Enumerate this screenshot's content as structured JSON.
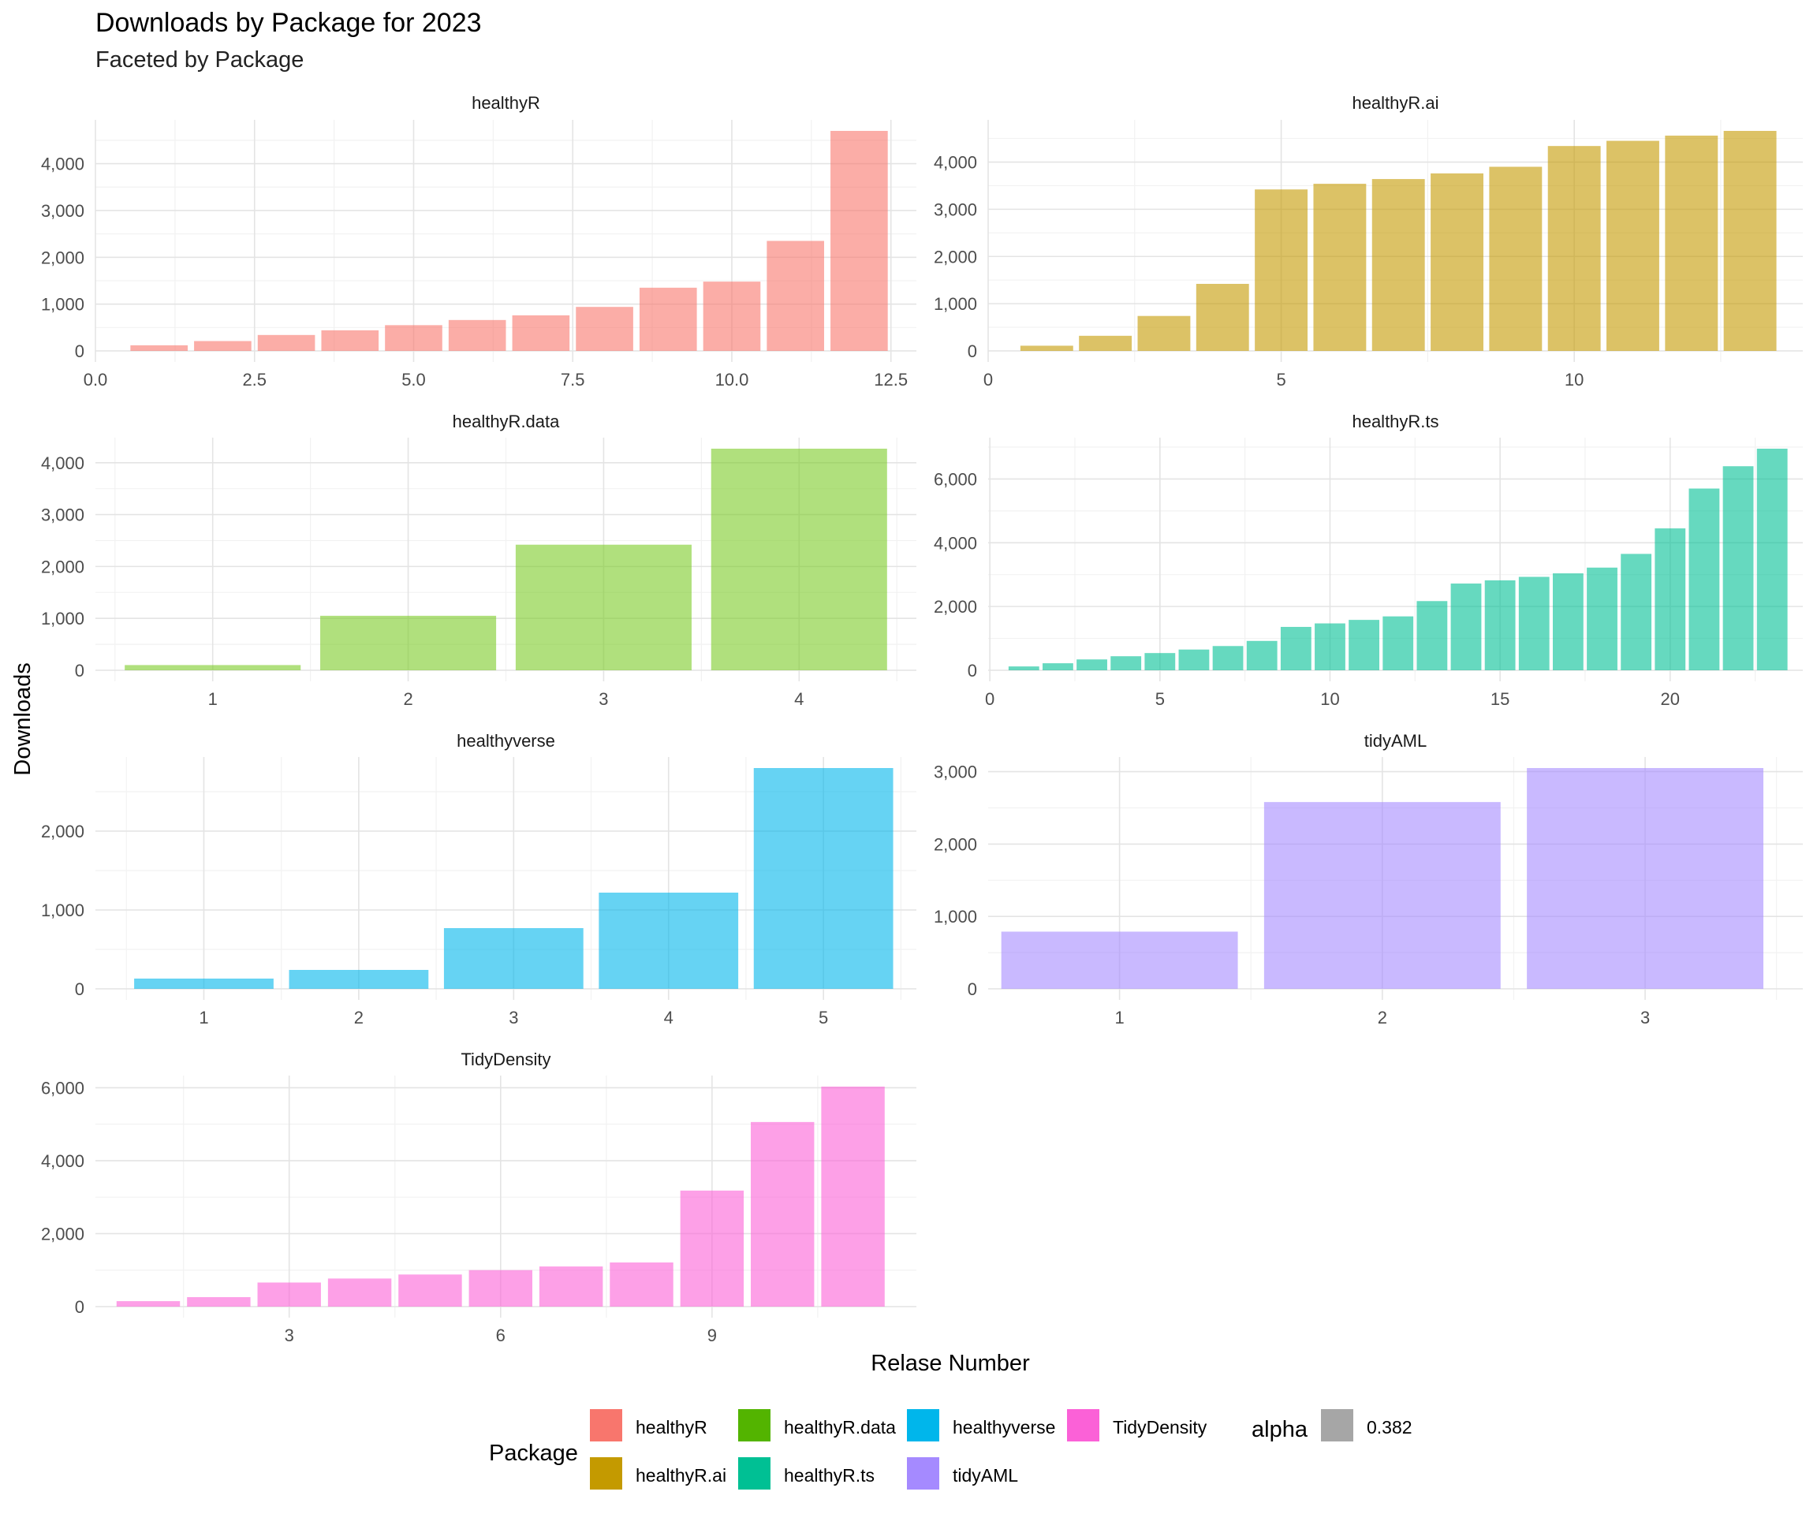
{
  "title": "Downloads by Package for 2023",
  "subtitle": "Faceted by Package",
  "xlabel": "Relase Number",
  "ylabel": "Downloads",
  "legend": {
    "title": "Package",
    "items": [
      {
        "name": "healthyR",
        "color": "#F8766D"
      },
      {
        "name": "healthyR.ai",
        "color": "#C49A00"
      },
      {
        "name": "healthyR.data",
        "color": "#53B400"
      },
      {
        "name": "healthyR.ts",
        "color": "#00C094"
      },
      {
        "name": "healthyverse",
        "color": "#00B6EB"
      },
      {
        "name": "tidyAML",
        "color": "#A58AFF"
      },
      {
        "name": "TidyDensity",
        "color": "#FB61D7"
      }
    ],
    "alpha_title": "alpha",
    "alpha_value": "0.382",
    "alpha_color": "#A6A6A6"
  },
  "chart_data": [
    {
      "type": "bar",
      "title": "healthyR",
      "color": "#F8766D",
      "x": [
        1,
        2,
        3,
        4,
        5,
        6,
        7,
        8,
        9,
        10,
        11,
        12
      ],
      "values": [
        120,
        210,
        340,
        440,
        550,
        660,
        760,
        940,
        1350,
        1480,
        2350,
        4700
      ],
      "xlim": [
        0,
        12.9
      ],
      "ylim": [
        0,
        4700
      ],
      "xticks": [
        0,
        2.5,
        5,
        7.5,
        10,
        12.5
      ],
      "xtick_labels": [
        "0.0",
        "2.5",
        "5.0",
        "7.5",
        "10.0",
        "12.5"
      ],
      "yticks": [
        0,
        1000,
        2000,
        3000,
        4000
      ],
      "ytick_labels": [
        "0",
        "1,000",
        "2,000",
        "3,000",
        "4,000"
      ]
    },
    {
      "type": "bar",
      "title": "healthyR.ai",
      "color": "#C49A00",
      "x": [
        1,
        2,
        3,
        4,
        5,
        6,
        7,
        8,
        9,
        10,
        11,
        12,
        13
      ],
      "values": [
        110,
        320,
        740,
        1420,
        3420,
        3540,
        3640,
        3760,
        3900,
        4340,
        4450,
        4560,
        4660
      ],
      "xlim": [
        0,
        13.9
      ],
      "ylim": [
        0,
        4660
      ],
      "xticks": [
        0,
        5,
        10
      ],
      "xtick_labels": [
        "0",
        "5",
        "10"
      ],
      "yticks": [
        0,
        1000,
        2000,
        3000,
        4000
      ],
      "ytick_labels": [
        "0",
        "1,000",
        "2,000",
        "3,000",
        "4,000"
      ]
    },
    {
      "type": "bar",
      "title": "healthyR.data",
      "color": "#7CCB27",
      "x": [
        1,
        2,
        3,
        4
      ],
      "values": [
        100,
        1050,
        2420,
        4270
      ],
      "xlim": [
        0.4,
        4.6
      ],
      "ylim": [
        0,
        4270
      ],
      "xticks": [
        1,
        2,
        3,
        4
      ],
      "xtick_labels": [
        "1",
        "2",
        "3",
        "4"
      ],
      "yticks": [
        0,
        1000,
        2000,
        3000,
        4000
      ],
      "ytick_labels": [
        "0",
        "1,000",
        "2,000",
        "3,000",
        "4,000"
      ]
    },
    {
      "type": "bar",
      "title": "healthyR.ts",
      "color": "#00C094",
      "x": [
        1,
        2,
        3,
        4,
        5,
        6,
        7,
        8,
        9,
        10,
        11,
        12,
        13,
        14,
        15,
        16,
        17,
        18,
        19,
        20,
        21,
        22,
        23
      ],
      "values": [
        120,
        220,
        340,
        440,
        540,
        650,
        760,
        920,
        1360,
        1470,
        1580,
        1690,
        2170,
        2720,
        2820,
        2930,
        3040,
        3220,
        3650,
        4450,
        5700,
        6400,
        6950
      ],
      "xlim": [
        -0.05,
        23.9
      ],
      "ylim": [
        0,
        6950
      ],
      "xticks": [
        0,
        5,
        10,
        15,
        20
      ],
      "xtick_labels": [
        "0",
        "5",
        "10",
        "15",
        "20"
      ],
      "yticks": [
        0,
        2000,
        4000,
        6000
      ],
      "ytick_labels": [
        "0",
        "2,000",
        "4,000",
        "6,000"
      ]
    },
    {
      "type": "bar",
      "title": "healthyverse",
      "color": "#00B6EB",
      "x": [
        1,
        2,
        3,
        4,
        5
      ],
      "values": [
        130,
        240,
        770,
        1220,
        2800
      ],
      "xlim": [
        0.3,
        5.6
      ],
      "ylim": [
        0,
        2800
      ],
      "xticks": [
        1,
        2,
        3,
        4,
        5
      ],
      "xtick_labels": [
        "1",
        "2",
        "3",
        "4",
        "5"
      ],
      "yticks": [
        0,
        1000,
        2000
      ],
      "ytick_labels": [
        "0",
        "1,000",
        "2,000"
      ]
    },
    {
      "type": "bar",
      "title": "tidyAML",
      "color": "#A58AFF",
      "x": [
        1,
        2,
        3
      ],
      "values": [
        790,
        2580,
        3050
      ],
      "xlim": [
        0.5,
        3.6
      ],
      "ylim": [
        0,
        3050
      ],
      "xticks": [
        1,
        2,
        3
      ],
      "xtick_labels": [
        "1",
        "2",
        "3"
      ],
      "yticks": [
        0,
        1000,
        2000,
        3000
      ],
      "ytick_labels": [
        "0",
        "1,000",
        "2,000",
        "3,000"
      ]
    },
    {
      "type": "bar",
      "title": "TidyDensity",
      "color": "#FB61D7",
      "x": [
        1,
        2,
        3,
        4,
        5,
        6,
        7,
        8,
        9,
        10,
        11
      ],
      "values": [
        150,
        260,
        660,
        770,
        880,
        1000,
        1100,
        1210,
        3180,
        5060,
        6030
      ],
      "xlim": [
        0.25,
        11.9
      ],
      "ylim": [
        0,
        6030
      ],
      "xticks": [
        3,
        6,
        9
      ],
      "xtick_labels": [
        "3",
        "6",
        "9"
      ],
      "yticks": [
        0,
        2000,
        4000,
        6000
      ],
      "ytick_labels": [
        "0",
        "2,000",
        "4,000",
        "6,000"
      ]
    }
  ]
}
